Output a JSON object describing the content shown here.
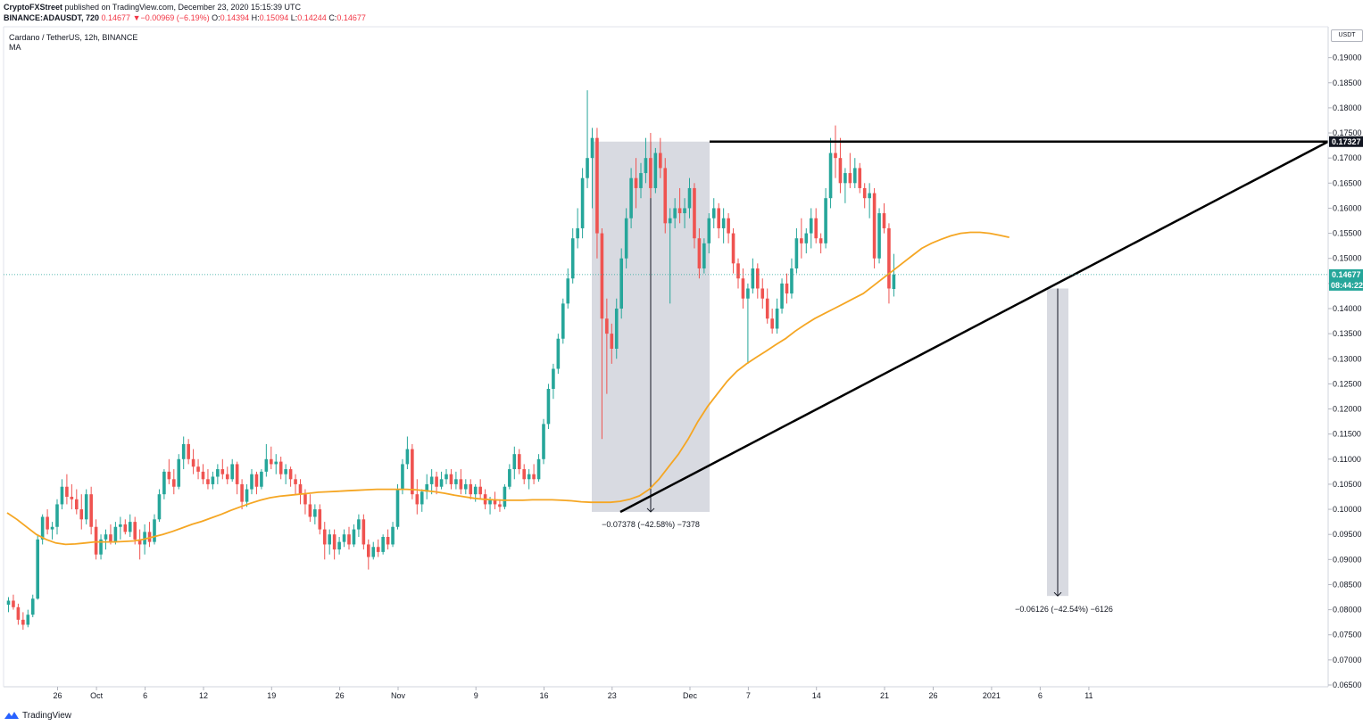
{
  "header": {
    "publisher": "CryptoFXStreet",
    "published_text": "published on TradingView.com, December 23, 2020 15:15:39 UTC",
    "symbol_line": "BINANCE:ADAUSDT, 720",
    "last_price": "0.14677",
    "change_arrow": "▼",
    "change": "−0.00969 (−6.19%)",
    "o_label": "O:",
    "o_value": "0.14394",
    "h_label": "H:",
    "h_value": "0.15094",
    "l_label": "L:",
    "l_value": "0.14244",
    "c_label": "C:",
    "c_value": "0.14677"
  },
  "legend": {
    "title": "Cardano / TetherUS, 12h, BINANCE",
    "indicator": "MA"
  },
  "footer": {
    "brand": "TradingView"
  },
  "colors": {
    "up": "#26a69a",
    "down": "#ef5350",
    "ma": "#f5a623",
    "line": "#000000",
    "box": "#d1d4dc",
    "price_tag": "#26a69a"
  },
  "chart_data": {
    "type": "candlestick",
    "title": "Cardano / TetherUS, 12h, BINANCE",
    "currency": "USDT",
    "ylim": [
      0.065,
      0.195
    ],
    "y_ticks": [
      "0.06500",
      "0.07000",
      "0.07500",
      "0.08000",
      "0.08500",
      "0.09000",
      "0.09500",
      "0.10000",
      "0.10500",
      "0.11000",
      "0.11500",
      "0.12000",
      "0.12500",
      "0.13000",
      "0.13500",
      "0.14000",
      "0.14500",
      "0.15000",
      "0.15500",
      "0.16000",
      "0.16500",
      "0.17000",
      "0.17500",
      "0.18000",
      "0.18500",
      "0.19000"
    ],
    "x_ticks": [
      {
        "label": "26",
        "day": 0
      },
      {
        "label": "Oct",
        "day": 4
      },
      {
        "label": "6",
        "day": 9
      },
      {
        "label": "12",
        "day": 15
      },
      {
        "label": "19",
        "day": 22
      },
      {
        "label": "26",
        "day": 29
      },
      {
        "label": "Nov",
        "day": 35
      },
      {
        "label": "9",
        "day": 43
      },
      {
        "label": "16",
        "day": 50
      },
      {
        "label": "23",
        "day": 57
      },
      {
        "label": "Dec",
        "day": 65
      },
      {
        "label": "7",
        "day": 71
      },
      {
        "label": "14",
        "day": 78
      },
      {
        "label": "21",
        "day": 85
      },
      {
        "label": "26",
        "day": 90
      },
      {
        "label": "2021",
        "day": 96
      },
      {
        "label": "6",
        "day": 101
      },
      {
        "label": "11",
        "day": 106
      }
    ],
    "resistance_level": "0.17327",
    "current_price": "0.14677",
    "countdown": "08:44:22",
    "measures": [
      {
        "label": "−0.07378 (−42.58%) −7378",
        "from_price": 0.17327,
        "to_price": 0.09949
      },
      {
        "label": "−0.06126 (−42.54%) −6126",
        "from_price": 0.144,
        "to_price": 0.08274
      }
    ],
    "candles_ohlc": [
      [
        0.081,
        0.0825,
        0.0795,
        0.0818
      ],
      [
        0.0818,
        0.083,
        0.08,
        0.0805
      ],
      [
        0.0805,
        0.0812,
        0.077,
        0.078
      ],
      [
        0.078,
        0.0795,
        0.076,
        0.077
      ],
      [
        0.077,
        0.08,
        0.0765,
        0.079
      ],
      [
        0.079,
        0.083,
        0.0785,
        0.0822
      ],
      [
        0.0822,
        0.095,
        0.082,
        0.094
      ],
      [
        0.094,
        0.099,
        0.093,
        0.0985
      ],
      [
        0.0985,
        0.1,
        0.095,
        0.096
      ],
      [
        0.096,
        0.0975,
        0.094,
        0.0965
      ],
      [
        0.0965,
        0.102,
        0.095,
        0.101
      ],
      [
        0.101,
        0.106,
        0.1,
        0.1045
      ],
      [
        0.1045,
        0.107,
        0.101,
        0.1025
      ],
      [
        0.1025,
        0.105,
        0.1,
        0.102
      ],
      [
        0.102,
        0.104,
        0.099,
        0.1
      ],
      [
        0.1,
        0.103,
        0.096,
        0.098
      ],
      [
        0.098,
        0.104,
        0.097,
        0.103
      ],
      [
        0.103,
        0.1045,
        0.095,
        0.0965
      ],
      [
        0.0965,
        0.098,
        0.09,
        0.091
      ],
      [
        0.091,
        0.095,
        0.09,
        0.094
      ],
      [
        0.094,
        0.096,
        0.092,
        0.095
      ],
      [
        0.095,
        0.097,
        0.093,
        0.0935
      ],
      [
        0.0935,
        0.0975,
        0.093,
        0.0965
      ],
      [
        0.0965,
        0.0985,
        0.094,
        0.097
      ],
      [
        0.097,
        0.098,
        0.095,
        0.0955
      ],
      [
        0.0955,
        0.099,
        0.0945,
        0.0975
      ],
      [
        0.0975,
        0.0985,
        0.093,
        0.094
      ],
      [
        0.094,
        0.096,
        0.09,
        0.093
      ],
      [
        0.093,
        0.097,
        0.091,
        0.0955
      ],
      [
        0.0955,
        0.0975,
        0.0925,
        0.0935
      ],
      [
        0.0935,
        0.099,
        0.093,
        0.098
      ],
      [
        0.098,
        0.104,
        0.0975,
        0.103
      ],
      [
        0.103,
        0.108,
        0.102,
        0.1075
      ],
      [
        0.1075,
        0.11,
        0.105,
        0.106
      ],
      [
        0.106,
        0.108,
        0.103,
        0.1045
      ],
      [
        0.1045,
        0.111,
        0.104,
        0.11
      ],
      [
        0.11,
        0.1145,
        0.108,
        0.113
      ],
      [
        0.113,
        0.114,
        0.109,
        0.11
      ],
      [
        0.11,
        0.112,
        0.107,
        0.1085
      ],
      [
        0.1085,
        0.11,
        0.106,
        0.1075
      ],
      [
        0.1075,
        0.109,
        0.105,
        0.106
      ],
      [
        0.106,
        0.108,
        0.104,
        0.105
      ],
      [
        0.105,
        0.1075,
        0.104,
        0.1065
      ],
      [
        0.1065,
        0.109,
        0.105,
        0.108
      ],
      [
        0.108,
        0.11,
        0.106,
        0.107
      ],
      [
        0.107,
        0.1085,
        0.105,
        0.106
      ],
      [
        0.106,
        0.11,
        0.1055,
        0.109
      ],
      [
        0.109,
        0.1095,
        0.103,
        0.105
      ],
      [
        0.105,
        0.106,
        0.1,
        0.1015
      ],
      [
        0.1015,
        0.105,
        0.1005,
        0.104
      ],
      [
        0.104,
        0.108,
        0.103,
        0.107
      ],
      [
        0.107,
        0.1075,
        0.103,
        0.1045
      ],
      [
        0.1045,
        0.108,
        0.104,
        0.1075
      ],
      [
        0.1075,
        0.113,
        0.1065,
        0.11
      ],
      [
        0.11,
        0.1125,
        0.108,
        0.109
      ],
      [
        0.109,
        0.111,
        0.107,
        0.1095
      ],
      [
        0.1095,
        0.1105,
        0.106,
        0.107
      ],
      [
        0.107,
        0.109,
        0.105,
        0.108
      ],
      [
        0.108,
        0.1085,
        0.1045,
        0.106
      ],
      [
        0.106,
        0.107,
        0.103,
        0.105
      ],
      [
        0.105,
        0.106,
        0.101,
        0.103
      ],
      [
        0.103,
        0.104,
        0.099,
        0.101
      ],
      [
        0.101,
        0.103,
        0.0975,
        0.0985
      ],
      [
        0.0985,
        0.101,
        0.097,
        0.1
      ],
      [
        0.1,
        0.101,
        0.095,
        0.096
      ],
      [
        0.096,
        0.0975,
        0.09,
        0.093
      ],
      [
        0.093,
        0.096,
        0.091,
        0.095
      ],
      [
        0.095,
        0.096,
        0.09,
        0.092
      ],
      [
        0.092,
        0.0945,
        0.091,
        0.0935
      ],
      [
        0.0935,
        0.096,
        0.0925,
        0.095
      ],
      [
        0.095,
        0.0965,
        0.092,
        0.093
      ],
      [
        0.093,
        0.097,
        0.0925,
        0.096
      ],
      [
        0.096,
        0.099,
        0.0945,
        0.098
      ],
      [
        0.098,
        0.099,
        0.092,
        0.093
      ],
      [
        0.093,
        0.094,
        0.088,
        0.0905
      ],
      [
        0.0905,
        0.0935,
        0.09,
        0.0925
      ],
      [
        0.0925,
        0.094,
        0.0905,
        0.0915
      ],
      [
        0.0915,
        0.095,
        0.091,
        0.0945
      ],
      [
        0.0945,
        0.096,
        0.092,
        0.093
      ],
      [
        0.093,
        0.0975,
        0.0925,
        0.0965
      ],
      [
        0.0965,
        0.105,
        0.096,
        0.104
      ],
      [
        0.104,
        0.11,
        0.103,
        0.109
      ],
      [
        0.109,
        0.1145,
        0.108,
        0.112
      ],
      [
        0.112,
        0.113,
        0.102,
        0.103
      ],
      [
        0.103,
        0.106,
        0.099,
        0.101
      ],
      [
        0.101,
        0.104,
        0.0995,
        0.1035
      ],
      [
        0.1035,
        0.107,
        0.102,
        0.105
      ],
      [
        0.105,
        0.108,
        0.103,
        0.1065
      ],
      [
        0.1065,
        0.1075,
        0.103,
        0.1045
      ],
      [
        0.1045,
        0.1075,
        0.104,
        0.106
      ],
      [
        0.106,
        0.108,
        0.105,
        0.107
      ],
      [
        0.107,
        0.108,
        0.104,
        0.105
      ],
      [
        0.105,
        0.1075,
        0.104,
        0.106
      ],
      [
        0.106,
        0.108,
        0.103,
        0.104
      ],
      [
        0.104,
        0.106,
        0.103,
        0.105
      ],
      [
        0.105,
        0.106,
        0.102,
        0.103
      ],
      [
        0.103,
        0.105,
        0.1015,
        0.1045
      ],
      [
        0.1045,
        0.106,
        0.102,
        0.103
      ],
      [
        0.103,
        0.104,
        0.1,
        0.101
      ],
      [
        0.101,
        0.1025,
        0.099,
        0.102
      ],
      [
        0.102,
        0.1035,
        0.1,
        0.101
      ],
      [
        0.101,
        0.102,
        0.0995,
        0.1005
      ],
      [
        0.1005,
        0.105,
        0.1,
        0.1045
      ],
      [
        0.1045,
        0.109,
        0.104,
        0.108
      ],
      [
        0.108,
        0.1125,
        0.106,
        0.111
      ],
      [
        0.111,
        0.112,
        0.107,
        0.108
      ],
      [
        0.108,
        0.109,
        0.105,
        0.106
      ],
      [
        0.106,
        0.108,
        0.104,
        0.107
      ],
      [
        0.107,
        0.109,
        0.105,
        0.106
      ],
      [
        0.106,
        0.111,
        0.1055,
        0.11
      ],
      [
        0.11,
        0.118,
        0.109,
        0.117
      ],
      [
        0.117,
        0.125,
        0.116,
        0.124
      ],
      [
        0.124,
        0.129,
        0.122,
        0.128
      ],
      [
        0.128,
        0.135,
        0.127,
        0.134
      ],
      [
        0.134,
        0.142,
        0.133,
        0.141
      ],
      [
        0.141,
        0.148,
        0.14,
        0.146
      ],
      [
        0.146,
        0.156,
        0.145,
        0.154
      ],
      [
        0.154,
        0.16,
        0.152,
        0.156
      ],
      [
        0.156,
        0.168,
        0.154,
        0.166
      ],
      [
        0.166,
        0.1835,
        0.164,
        0.17
      ],
      [
        0.17,
        0.176,
        0.16,
        0.174
      ],
      [
        0.174,
        0.176,
        0.15,
        0.155
      ],
      [
        0.155,
        0.156,
        0.114,
        0.138
      ],
      [
        0.138,
        0.142,
        0.123,
        0.135
      ],
      [
        0.135,
        0.137,
        0.129,
        0.132
      ],
      [
        0.132,
        0.142,
        0.13,
        0.14
      ],
      [
        0.14,
        0.152,
        0.138,
        0.15
      ],
      [
        0.15,
        0.16,
        0.148,
        0.158
      ],
      [
        0.158,
        0.168,
        0.156,
        0.166
      ],
      [
        0.166,
        0.17,
        0.16,
        0.164
      ],
      [
        0.164,
        0.169,
        0.162,
        0.167
      ],
      [
        0.167,
        0.174,
        0.165,
        0.17
      ],
      [
        0.17,
        0.175,
        0.162,
        0.164
      ],
      [
        0.164,
        0.172,
        0.163,
        0.171
      ],
      [
        0.171,
        0.174,
        0.166,
        0.168
      ],
      [
        0.168,
        0.17,
        0.155,
        0.157
      ],
      [
        0.157,
        0.16,
        0.141,
        0.158
      ],
      [
        0.158,
        0.162,
        0.156,
        0.16
      ],
      [
        0.16,
        0.164,
        0.157,
        0.159
      ],
      [
        0.159,
        0.162,
        0.156,
        0.16
      ],
      [
        0.16,
        0.166,
        0.158,
        0.164
      ],
      [
        0.164,
        0.165,
        0.152,
        0.154
      ],
      [
        0.154,
        0.156,
        0.146,
        0.148
      ],
      [
        0.148,
        0.154,
        0.147,
        0.153
      ],
      [
        0.153,
        0.159,
        0.151,
        0.158
      ],
      [
        0.158,
        0.162,
        0.156,
        0.16
      ],
      [
        0.16,
        0.161,
        0.154,
        0.156
      ],
      [
        0.156,
        0.16,
        0.153,
        0.158
      ],
      [
        0.158,
        0.159,
        0.153,
        0.155
      ],
      [
        0.155,
        0.156,
        0.147,
        0.149
      ],
      [
        0.149,
        0.15,
        0.144,
        0.146
      ],
      [
        0.146,
        0.148,
        0.14,
        0.142
      ],
      [
        0.142,
        0.145,
        0.129,
        0.144
      ],
      [
        0.144,
        0.15,
        0.143,
        0.148
      ],
      [
        0.148,
        0.149,
        0.142,
        0.144
      ],
      [
        0.144,
        0.146,
        0.14,
        0.142
      ],
      [
        0.142,
        0.144,
        0.137,
        0.138
      ],
      [
        0.138,
        0.14,
        0.135,
        0.136
      ],
      [
        0.136,
        0.142,
        0.135,
        0.14
      ],
      [
        0.14,
        0.146,
        0.139,
        0.145
      ],
      [
        0.145,
        0.147,
        0.141,
        0.143
      ],
      [
        0.143,
        0.15,
        0.142,
        0.148
      ],
      [
        0.148,
        0.156,
        0.147,
        0.154
      ],
      [
        0.154,
        0.158,
        0.15,
        0.153
      ],
      [
        0.153,
        0.156,
        0.151,
        0.155
      ],
      [
        0.155,
        0.16,
        0.152,
        0.158
      ],
      [
        0.158,
        0.16,
        0.153,
        0.154
      ],
      [
        0.154,
        0.155,
        0.151,
        0.153
      ],
      [
        0.153,
        0.164,
        0.152,
        0.162
      ],
      [
        0.162,
        0.174,
        0.16,
        0.171
      ],
      [
        0.171,
        0.1765,
        0.166,
        0.17
      ],
      [
        0.17,
        0.174,
        0.163,
        0.165
      ],
      [
        0.165,
        0.168,
        0.161,
        0.167
      ],
      [
        0.167,
        0.171,
        0.164,
        0.165
      ],
      [
        0.165,
        0.17,
        0.164,
        0.168
      ],
      [
        0.168,
        0.169,
        0.163,
        0.164
      ],
      [
        0.164,
        0.165,
        0.16,
        0.162
      ],
      [
        0.162,
        0.165,
        0.158,
        0.163
      ],
      [
        0.163,
        0.164,
        0.148,
        0.15
      ],
      [
        0.15,
        0.16,
        0.149,
        0.159
      ],
      [
        0.159,
        0.161,
        0.155,
        0.156
      ],
      [
        0.156,
        0.157,
        0.141,
        0.144
      ],
      [
        0.1439,
        0.1509,
        0.1424,
        0.1468
      ]
    ],
    "ma_series": [
      0.0993,
      0.098,
      0.0965,
      0.095,
      0.094,
      0.0933,
      0.093,
      0.0931,
      0.0933,
      0.0935,
      0.0935,
      0.0935,
      0.0936,
      0.0937,
      0.094,
      0.0945,
      0.095,
      0.0956,
      0.0963,
      0.097,
      0.0976,
      0.0983,
      0.099,
      0.0998,
      0.1005,
      0.1012,
      0.1018,
      0.1023,
      0.1026,
      0.1028,
      0.103,
      0.1032,
      0.1034,
      0.1035,
      0.1036,
      0.1037,
      0.1038,
      0.1039,
      0.104,
      0.104,
      0.104,
      0.104,
      0.1039,
      0.1037,
      0.1035,
      0.1032,
      0.1028,
      0.1025,
      0.1022,
      0.102,
      0.1019,
      0.1018,
      0.1018,
      0.1018,
      0.1019,
      0.1019,
      0.1019,
      0.1018,
      0.1017,
      0.1015,
      0.1014,
      0.1014,
      0.1014,
      0.1016,
      0.102,
      0.1027,
      0.104,
      0.106,
      0.1085,
      0.111,
      0.114,
      0.1175,
      0.1205,
      0.123,
      0.1255,
      0.1275,
      0.129,
      0.1303,
      0.1315,
      0.1328,
      0.134,
      0.1355,
      0.1368,
      0.138,
      0.139,
      0.14,
      0.141,
      0.142,
      0.143,
      0.1445,
      0.146,
      0.1475,
      0.149,
      0.1505,
      0.152,
      0.153,
      0.1538,
      0.1545,
      0.155,
      0.1552,
      0.1552,
      0.155,
      0.1546,
      0.1542
    ]
  }
}
